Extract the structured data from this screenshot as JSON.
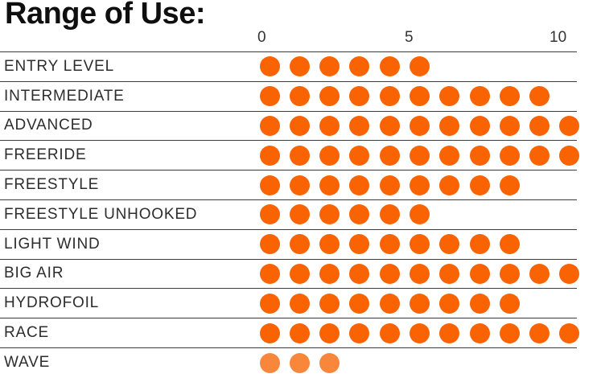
{
  "header": {
    "title": "Range of Use:"
  },
  "axis": {
    "ticks": [
      "0",
      "5",
      "10"
    ]
  },
  "chart_data": {
    "type": "bar",
    "variant": "dot-rating-rows",
    "title": "Range of Use:",
    "xlabel": "",
    "ylabel": "",
    "xlim": [
      0,
      10
    ],
    "xticks": [
      0,
      5,
      10
    ],
    "legend": "none",
    "grid": "horizontal row separator lines",
    "categories": [
      "ENTRY LEVEL",
      "INTERMEDIATE",
      "ADVANCED",
      "FREERIDE",
      "FREESTYLE",
      "FREESTYLE UNHOOKED",
      "LIGHT WIND",
      "BIG AIR",
      "HYDROFOIL",
      "RACE",
      "WAVE"
    ],
    "values": [
      5,
      9,
      10,
      10,
      8,
      5,
      8,
      10,
      8,
      10,
      2
    ],
    "dot_counts": [
      6,
      10,
      11,
      11,
      9,
      6,
      9,
      11,
      9,
      11,
      3
    ],
    "colors": {
      "dot": "#F96302",
      "wave_dot": "#F9873B",
      "line": "#3C3C3C",
      "label_text": "#2D2D2D",
      "tick_text": "#333333",
      "title_text": "#0F0F0F",
      "background": "#FFFFFF"
    },
    "rows": [
      {
        "label": "ENTRY LEVEL",
        "dots": 6,
        "value": 5,
        "color": "#F96302"
      },
      {
        "label": "INTERMEDIATE",
        "dots": 10,
        "value": 9,
        "color": "#F96302"
      },
      {
        "label": "ADVANCED",
        "dots": 11,
        "value": 10,
        "color": "#F96302"
      },
      {
        "label": "FREERIDE",
        "dots": 11,
        "value": 10,
        "color": "#F96302"
      },
      {
        "label": "FREESTYLE",
        "dots": 9,
        "value": 8,
        "color": "#F96302"
      },
      {
        "label": "FREESTYLE UNHOOKED",
        "dots": 6,
        "value": 5,
        "color": "#F96302"
      },
      {
        "label": "LIGHT WIND",
        "dots": 9,
        "value": 8,
        "color": "#F96302"
      },
      {
        "label": "BIG AIR",
        "dots": 11,
        "value": 10,
        "color": "#F96302"
      },
      {
        "label": "HYDROFOIL",
        "dots": 9,
        "value": 8,
        "color": "#F96302"
      },
      {
        "label": "RACE",
        "dots": 11,
        "value": 10,
        "color": "#F96302"
      },
      {
        "label": "WAVE",
        "dots": 3,
        "value": 2,
        "color": "#F9873B"
      }
    ]
  }
}
